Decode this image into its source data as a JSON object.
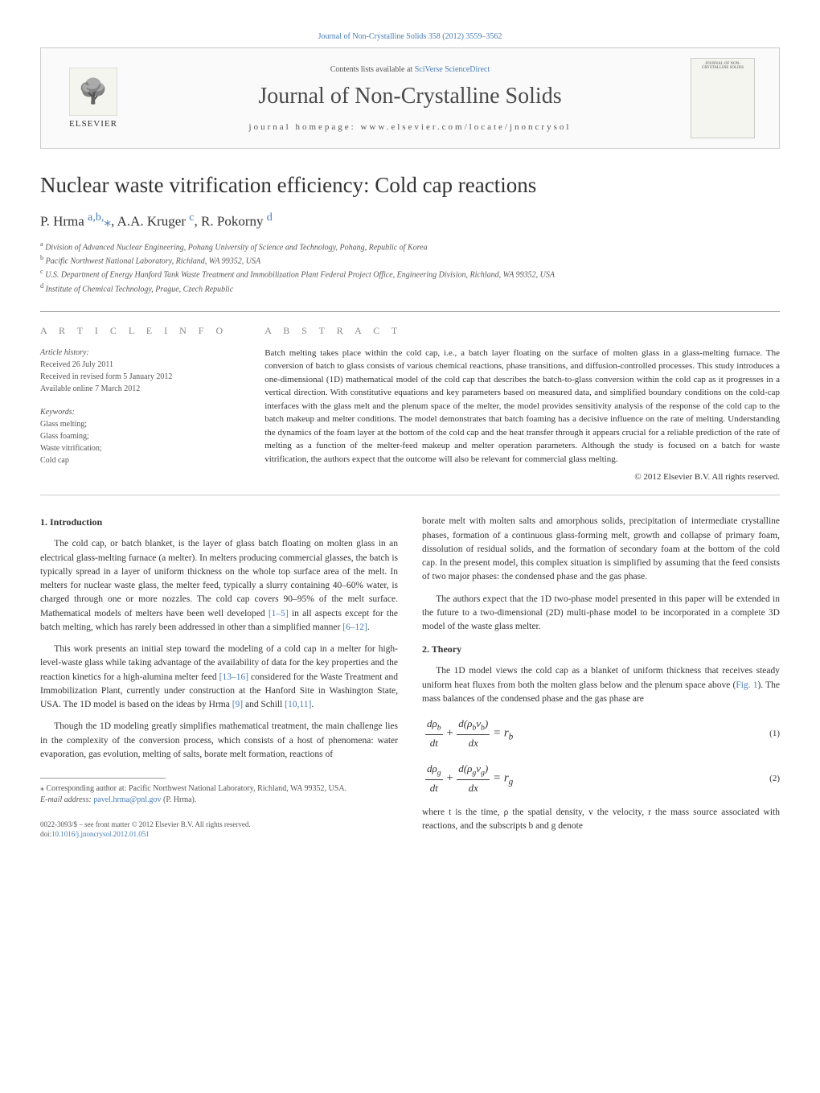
{
  "top_link": "Journal of Non-Crystalline Solids 358 (2012) 3559–3562",
  "banner": {
    "contents_prefix": "Contents lists available at ",
    "sciverse": "SciVerse ScienceDirect",
    "journal_name": "Journal of Non-Crystalline Solids",
    "homepage": "journal homepage: www.elsevier.com/locate/jnoncrysol",
    "elsevier": "ELSEVIER",
    "cover_text": "JOURNAL OF NON-CRYSTALLINE SOLIDS"
  },
  "article": {
    "title": "Nuclear waste vitrification efficiency: Cold cap reactions",
    "authors_html": "P. Hrma <sup class='author-link'>a,b,</sup><span class='corresp-mark'>⁎</span>, A.A. Kruger <sup class='author-link'>c</sup>, R. Pokorny <sup class='author-link'>d</sup>",
    "affiliations": [
      "a Division of Advanced Nuclear Engineering, Pohang University of Science and Technology, Pohang, Republic of Korea",
      "b Pacific Northwest National Laboratory, Richland, WA 99352, USA",
      "c U.S. Department of Energy Hanford Tank Waste Treatment and Immobilization Plant Federal Project Office, Engineering Division, Richland, WA 99352, USA",
      "d Institute of Chemical Technology, Prague, Czech Republic"
    ]
  },
  "info": {
    "heading": "A R T I C L E   I N F O",
    "history_label": "Article history:",
    "history_lines": [
      "Received 26 July 2011",
      "Received in revised form 5 January 2012",
      "Available online 7 March 2012"
    ],
    "keywords_label": "Keywords:",
    "keywords": [
      "Glass melting;",
      "Glass foaming;",
      "Waste vitrification;",
      "Cold cap"
    ]
  },
  "abstract": {
    "heading": "A B S T R A C T",
    "text": "Batch melting takes place within the cold cap, i.e., a batch layer floating on the surface of molten glass in a glass-melting furnace. The conversion of batch to glass consists of various chemical reactions, phase transitions, and diffusion-controlled processes. This study introduces a one-dimensional (1D) mathematical model of the cold cap that describes the batch-to-glass conversion within the cold cap as it progresses in a vertical direction. With constitutive equations and key parameters based on measured data, and simplified boundary conditions on the cold-cap interfaces with the glass melt and the plenum space of the melter, the model provides sensitivity analysis of the response of the cold cap to the batch makeup and melter conditions. The model demonstrates that batch foaming has a decisive influence on the rate of melting. Understanding the dynamics of the foam layer at the bottom of the cold cap and the heat transfer through it appears crucial for a reliable prediction of the rate of melting as a function of the melter-feed makeup and melter operation parameters. Although the study is focused on a batch for waste vitrification, the authors expect that the outcome will also be relevant for commercial glass melting.",
    "copyright": "© 2012 Elsevier B.V. All rights reserved."
  },
  "body": {
    "intro_heading": "1. Introduction",
    "intro_p1": "The cold cap, or batch blanket, is the layer of glass batch floating on molten glass in an electrical glass-melting furnace (a melter). In melters producing commercial glasses, the batch is typically spread in a layer of uniform thickness on the whole top surface area of the melt. In melters for nuclear waste glass, the melter feed, typically a slurry containing 40–60% water, is charged through one or more nozzles. The cold cap covers 90–95% of the melt surface. Mathematical models of melters have been well developed ",
    "intro_p1_ref1": "[1–5]",
    "intro_p1_cont": " in all aspects except for the batch melting, which has rarely been addressed in other than a simplified manner ",
    "intro_p1_ref2": "[6–12]",
    "intro_p1_end": ".",
    "intro_p2": "This work presents an initial step toward the modeling of a cold cap in a melter for high-level-waste glass while taking advantage of the availability of data for the key properties and the reaction kinetics for a high-alumina melter feed ",
    "intro_p2_ref1": "[13–16]",
    "intro_p2_cont": " considered for the Waste Treatment and Immobilization Plant, currently under construction at the Hanford Site in Washington State, USA. The 1D model is based on the ideas by Hrma ",
    "intro_p2_ref2": "[9]",
    "intro_p2_cont2": " and Schill ",
    "intro_p2_ref3": "[10,11]",
    "intro_p2_end": ".",
    "intro_p3": "Though the 1D modeling greatly simplifies mathematical treatment, the main challenge lies in the complexity of the conversion process, which consists of a host of phenomena: water evaporation, gas evolution, melting of salts, borate melt formation, reactions of",
    "col2_p1": "borate melt with molten salts and amorphous solids, precipitation of intermediate crystalline phases, formation of a continuous glass-forming melt, growth and collapse of primary foam, dissolution of residual solids, and the formation of secondary foam at the bottom of the cold cap. In the present model, this complex situation is simplified by assuming that the feed consists of two major phases: the condensed phase and the gas phase.",
    "col2_p2": "The authors expect that the 1D two-phase model presented in this paper will be extended in the future to a two-dimensional (2D) multi-phase model to be incorporated in a complete 3D model of the waste glass melter.",
    "theory_heading": "2. Theory",
    "theory_p1": "The 1D model views the cold cap as a blanket of uniform thickness that receives steady uniform heat fluxes from both the molten glass below and the plenum space above (",
    "theory_fig1": "Fig. 1",
    "theory_p1_cont": "). The mass balances of the condensed phase and the gas phase are",
    "eq1_num": "(1)",
    "eq2_num": "(2)",
    "theory_p2": "where t is the time, ρ the spatial density, v the velocity, r the mass source associated with reactions, and the subscripts b and g denote"
  },
  "footnotes": {
    "corresp": "⁎ Corresponding author at: Pacific Northwest National Laboratory, Richland, WA 99352, USA.",
    "email_label": "E-mail address: ",
    "email": "pavel.hrma@pnl.gov",
    "email_suffix": " (P. Hrma)."
  },
  "footer": {
    "line1": "0022-3093/$ – see front matter © 2012 Elsevier B.V. All rights reserved.",
    "doi_prefix": "doi:",
    "doi": "10.1016/j.jnoncrysol.2012.01.051"
  },
  "colors": {
    "link": "#4a7db5",
    "text": "#333333",
    "muted": "#555555",
    "border": "#999999"
  }
}
